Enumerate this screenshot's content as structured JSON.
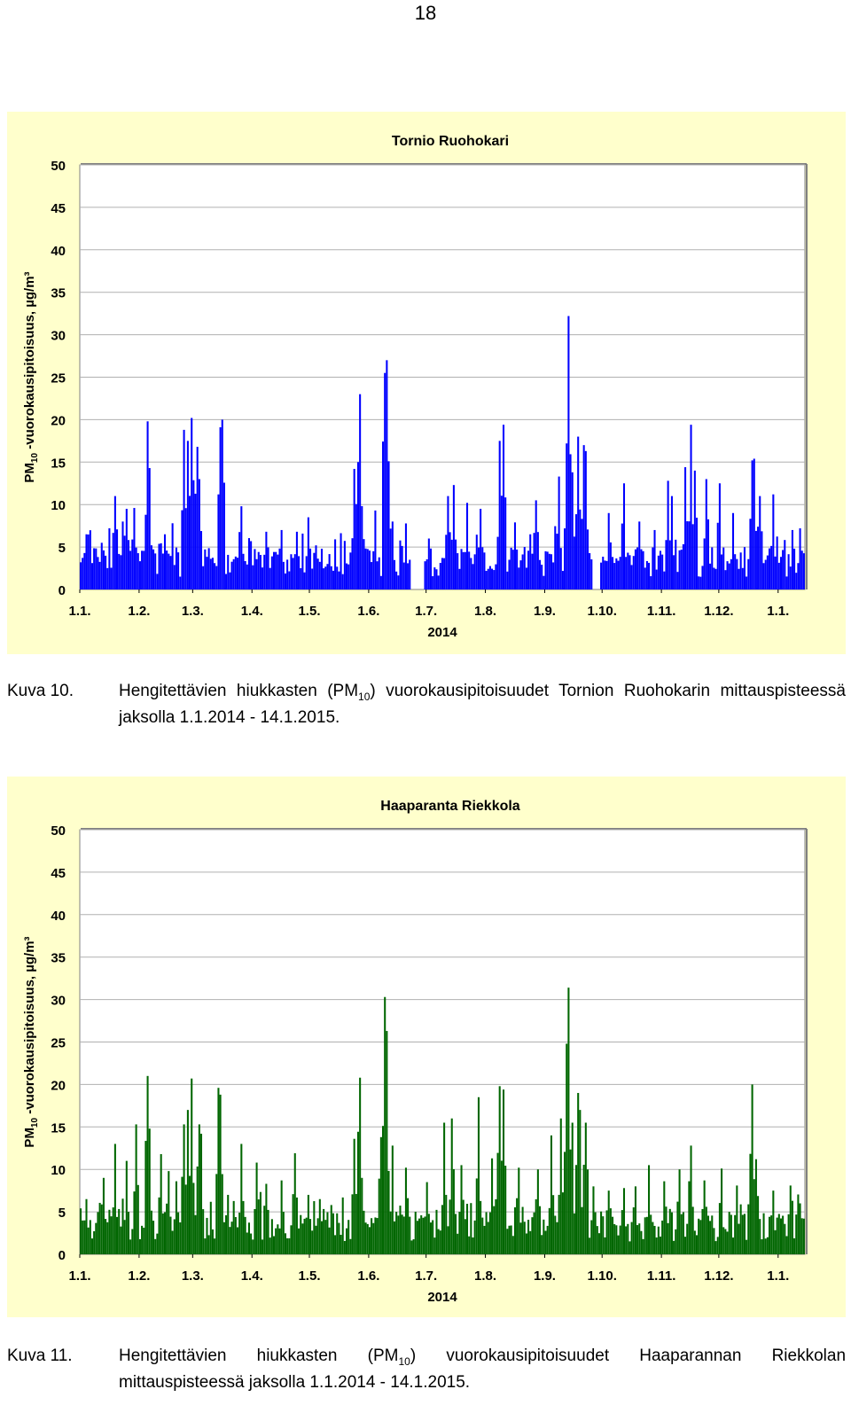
{
  "page": {
    "number": "18"
  },
  "colors": {
    "panel_background": "#ffffcc",
    "plot_background": "#ffffff",
    "grid": "#b0b0b0"
  },
  "chart_data": [
    {
      "type": "bar",
      "title": "Tornio Ruohokari",
      "ylabel_main": "PM",
      "ylabel_sub": "10",
      "ylabel_rest": " -vuorokausipitoisuus, µg/m³",
      "ylim": [
        0,
        50
      ],
      "yticks": [
        "0",
        "5",
        "10",
        "15",
        "20",
        "25",
        "30",
        "35",
        "40",
        "45",
        "50"
      ],
      "xtick_labels": [
        "1.1.",
        "1.2.",
        "1.3.",
        "1.4.",
        "1.5.",
        "1.6.",
        "1.7.",
        "1.8.",
        "1.9.",
        "1.10.",
        "1.11.",
        "1.12.",
        "1.1."
      ],
      "xlabel": "2014",
      "bar_color": "#0000ff",
      "grid": true,
      "x_start": "2014-01-01",
      "x_end": "2015-01-14",
      "peaks": [
        [
          "2014-01-04",
          6.5
        ],
        [
          "2014-01-12",
          5.5
        ],
        [
          "2014-01-19",
          11
        ],
        [
          "2014-01-23",
          8
        ],
        [
          "2014-01-25",
          9.5
        ],
        [
          "2014-01-29",
          9.6
        ],
        [
          "2014-02-04",
          8.8
        ],
        [
          "2014-02-05",
          19.8
        ],
        [
          "2014-02-06",
          14.3
        ],
        [
          "2014-02-14",
          6.5
        ],
        [
          "2014-02-18",
          7.8
        ],
        [
          "2014-02-24",
          18.8
        ],
        [
          "2014-02-26",
          17.5
        ],
        [
          "2014-02-28",
          20.2
        ],
        [
          "2014-03-03",
          16.8
        ],
        [
          "2014-03-04",
          13
        ],
        [
          "2014-03-15",
          19.1
        ],
        [
          "2014-03-16",
          20
        ],
        [
          "2014-03-26",
          9.8
        ],
        [
          "2014-04-08",
          6.8
        ],
        [
          "2014-04-16",
          7
        ],
        [
          "2014-04-24",
          6.8
        ],
        [
          "2014-04-30",
          8.5
        ],
        [
          "2014-05-07",
          4.8
        ],
        [
          "2014-05-24",
          14.2
        ],
        [
          "2014-05-26",
          15
        ],
        [
          "2014-05-27",
          23
        ],
        [
          "2014-06-04",
          9.3
        ],
        [
          "2014-06-09",
          25.5
        ],
        [
          "2014-06-10",
          27
        ],
        [
          "2014-06-11",
          15.1
        ],
        [
          "2014-06-13",
          8
        ],
        [
          "2014-07-02",
          6
        ],
        [
          "2014-07-12",
          11
        ],
        [
          "2014-07-15",
          12.3
        ],
        [
          "2014-07-22",
          10.2
        ],
        [
          "2014-07-29",
          9.5
        ],
        [
          "2014-08-08",
          17.5
        ],
        [
          "2014-08-10",
          19.4
        ],
        [
          "2014-08-16",
          7.9
        ],
        [
          "2014-08-24",
          6.5
        ],
        [
          "2014-08-27",
          10.5
        ],
        [
          "2014-09-08",
          13.3
        ],
        [
          "2014-09-12",
          17.2
        ],
        [
          "2014-09-13",
          32.2
        ],
        [
          "2014-09-15",
          13.8
        ],
        [
          "2014-09-18",
          18
        ],
        [
          "2014-09-21",
          17
        ],
        [
          "2014-09-22",
          16.3
        ],
        [
          "2014-10-04",
          9
        ],
        [
          "2014-10-12",
          12.5
        ],
        [
          "2014-10-20",
          8
        ],
        [
          "2014-10-28",
          7
        ],
        [
          "2014-11-04",
          12.8
        ],
        [
          "2014-11-06",
          11
        ],
        [
          "2014-11-13",
          14.4
        ],
        [
          "2014-11-16",
          19.4
        ],
        [
          "2014-11-18",
          14
        ],
        [
          "2014-11-24",
          13
        ],
        [
          "2014-12-01",
          12.5
        ],
        [
          "2014-12-08",
          9
        ],
        [
          "2014-12-18",
          15.2
        ],
        [
          "2014-12-19",
          15.4
        ],
        [
          "2014-12-22",
          11
        ],
        [
          "2014-12-29",
          11.2
        ],
        [
          "2015-01-08",
          7
        ],
        [
          "2015-01-12",
          7.2
        ]
      ],
      "gaps": [
        [
          "2014-06-23",
          "2014-06-29"
        ],
        [
          "2014-09-26",
          "2014-09-29"
        ]
      ]
    },
    {
      "type": "bar",
      "title": "Haaparanta Riekkola",
      "ylabel_main": "PM",
      "ylabel_sub": "10",
      "ylabel_rest": " -vuorokausipitoisuus, µg/m³",
      "ylim": [
        0,
        50
      ],
      "yticks": [
        "0",
        "5",
        "10",
        "15",
        "20",
        "25",
        "30",
        "35",
        "40",
        "45",
        "50"
      ],
      "xtick_labels": [
        "1.1.",
        "1.2.",
        "1.3.",
        "1.4.",
        "1.5.",
        "1.6.",
        "1.7.",
        "1.8.",
        "1.9.",
        "1.10.",
        "1.11.",
        "1.12.",
        "1.1."
      ],
      "xlabel": "2014",
      "bar_color": "#006600",
      "grid": true,
      "x_start": "2014-01-01",
      "x_end": "2015-01-14",
      "peaks": [
        [
          "2014-01-04",
          6.5
        ],
        [
          "2014-01-13",
          9
        ],
        [
          "2014-01-19",
          13
        ],
        [
          "2014-01-25",
          11
        ],
        [
          "2014-01-30",
          15.3
        ],
        [
          "2014-02-05",
          21
        ],
        [
          "2014-02-06",
          14.8
        ],
        [
          "2014-02-12",
          11.8
        ],
        [
          "2014-02-16",
          9.8
        ],
        [
          "2014-02-20",
          8.6
        ],
        [
          "2014-02-24",
          15.3
        ],
        [
          "2014-02-26",
          17
        ],
        [
          "2014-02-28",
          20.7
        ],
        [
          "2014-03-04",
          15.3
        ],
        [
          "2014-03-05",
          14.2
        ],
        [
          "2014-03-14",
          19.6
        ],
        [
          "2014-03-15",
          18.8
        ],
        [
          "2014-03-19",
          7
        ],
        [
          "2014-03-26",
          13
        ],
        [
          "2014-04-03",
          10.8
        ],
        [
          "2014-04-08",
          8.3
        ],
        [
          "2014-04-16",
          8.7
        ],
        [
          "2014-04-23",
          11.9
        ],
        [
          "2014-04-30",
          7
        ],
        [
          "2014-05-06",
          6.5
        ],
        [
          "2014-05-24",
          13.6
        ],
        [
          "2014-05-27",
          20.8
        ],
        [
          "2014-06-07",
          13.8
        ],
        [
          "2014-06-09",
          30.3
        ],
        [
          "2014-06-10",
          26.3
        ],
        [
          "2014-06-13",
          12.8
        ],
        [
          "2014-06-20",
          10.2
        ],
        [
          "2014-07-01",
          8.5
        ],
        [
          "2014-07-10",
          15.5
        ],
        [
          "2014-07-14",
          16
        ],
        [
          "2014-07-19",
          10.5
        ],
        [
          "2014-07-28",
          18.5
        ],
        [
          "2014-08-04",
          11.3
        ],
        [
          "2014-08-08",
          19.8
        ],
        [
          "2014-08-10",
          19.4
        ],
        [
          "2014-08-18",
          10.2
        ],
        [
          "2014-08-28",
          10
        ],
        [
          "2014-09-04",
          14
        ],
        [
          "2014-09-09",
          16
        ],
        [
          "2014-09-12",
          24.8
        ],
        [
          "2014-09-13",
          31.4
        ],
        [
          "2014-09-15",
          15.5
        ],
        [
          "2014-09-18",
          19
        ],
        [
          "2014-09-19",
          17
        ],
        [
          "2014-09-22",
          15.5
        ],
        [
          "2014-09-26",
          8
        ],
        [
          "2014-10-04",
          7.5
        ],
        [
          "2014-10-12",
          7.8
        ],
        [
          "2014-10-18",
          8
        ],
        [
          "2014-10-25",
          10.5
        ],
        [
          "2014-11-02",
          8.6
        ],
        [
          "2014-11-10",
          10
        ],
        [
          "2014-11-16",
          12.8
        ],
        [
          "2014-11-23",
          8.7
        ],
        [
          "2014-12-02",
          10.1
        ],
        [
          "2014-12-10",
          8.1
        ],
        [
          "2014-12-18",
          20
        ],
        [
          "2014-12-20",
          11.2
        ],
        [
          "2014-12-29",
          7.5
        ],
        [
          "2015-01-07",
          8.1
        ],
        [
          "2015-01-12",
          6
        ]
      ],
      "gaps": []
    }
  ],
  "captions": [
    {
      "label": "Kuva 10.",
      "text_before": "Hengitettävien hiukkasten (PM",
      "text_sub": "10",
      "text_after": ") vuorokausipitoisuudet Tornion Ruohokarin mitta­uspisteessä jaksolla 1.1.2014 - 14.1.2015."
    },
    {
      "label": "Kuva 11.",
      "text_before": "Hengitettävien hiukkasten (PM",
      "text_sub": "10",
      "text_after": ") vuorokausipitoisuudet Haaparannan Riekkolan mittauspisteessä jaksolla 1.1.2014 - 14.1.2015."
    }
  ]
}
